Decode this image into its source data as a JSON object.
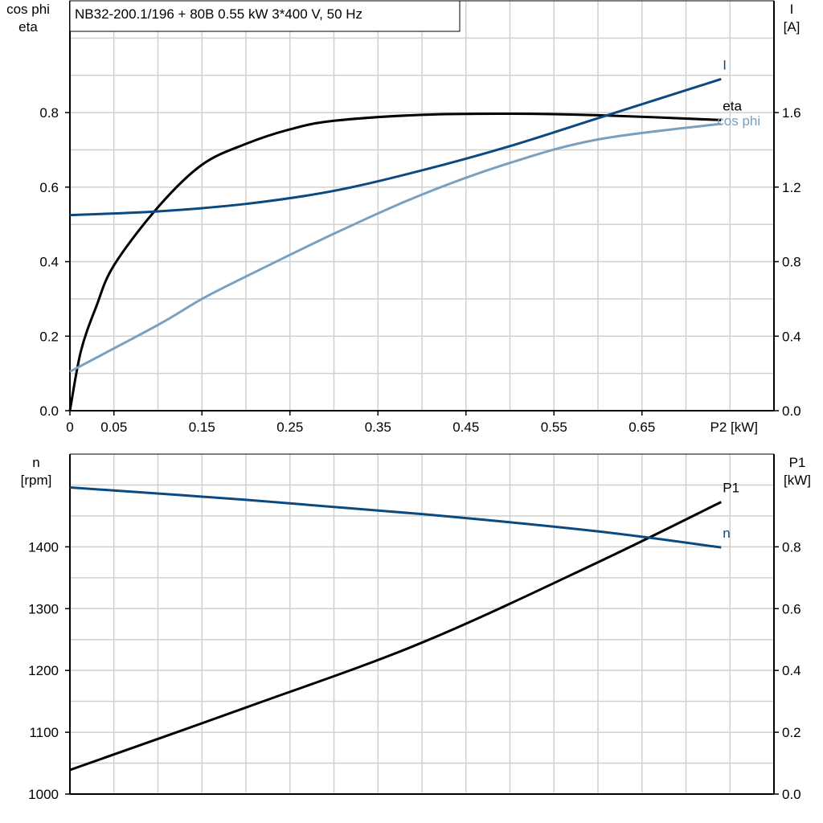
{
  "chart_data": [
    {
      "type": "line",
      "title": "NB32-200.1/196 + 80B   0.55 kW   3*400 V, 50 Hz",
      "xlabel": "P2 [kW]",
      "x_ticks": [
        "0",
        "0.05",
        "0.15",
        "0.25",
        "0.35",
        "0.45",
        "0.55",
        "0.65"
      ],
      "x_tick_values": [
        0,
        0.05,
        0.15,
        0.25,
        0.35,
        0.45,
        0.55,
        0.65
      ],
      "xlim": [
        0,
        0.8
      ],
      "grid": true,
      "y_left": {
        "label_lines": [
          "cos phi",
          "eta"
        ],
        "ylim": [
          0,
          1.1
        ],
        "ticks": [
          "0.0",
          "0.2",
          "0.4",
          "0.6",
          "0.8"
        ],
        "tick_values": [
          0,
          0.2,
          0.4,
          0.6,
          0.8
        ]
      },
      "y_right": {
        "label_lines": [
          "I",
          "[A]"
        ],
        "ylim": [
          0,
          2.2
        ],
        "ticks": [
          "0.0",
          "0.4",
          "0.8",
          "1.2",
          "1.6"
        ],
        "tick_values": [
          0,
          0.4,
          0.8,
          1.2,
          1.6
        ]
      },
      "series": [
        {
          "name": "eta",
          "axis": "left",
          "color": "#000000",
          "x": [
            0,
            0.0125,
            0.03,
            0.05,
            0.1,
            0.15,
            0.2,
            0.25,
            0.3,
            0.4,
            0.5,
            0.6,
            0.74
          ],
          "y": [
            0,
            0.16,
            0.28,
            0.39,
            0.546,
            0.66,
            0.716,
            0.755,
            0.778,
            0.794,
            0.797,
            0.793,
            0.78
          ]
        },
        {
          "name": "I",
          "axis": "right",
          "color": "#0a4a80",
          "x": [
            0,
            0.1,
            0.2,
            0.3,
            0.4,
            0.5,
            0.6,
            0.74
          ],
          "y": [
            1.05,
            1.07,
            1.11,
            1.18,
            1.29,
            1.42,
            1.57,
            1.78
          ]
        },
        {
          "name": "cos phi",
          "axis": "left",
          "color": "#7aa0c0",
          "x": [
            0,
            0.1,
            0.15,
            0.2,
            0.3,
            0.4,
            0.5,
            0.6,
            0.74
          ],
          "y": [
            0.105,
            0.23,
            0.3,
            0.36,
            0.475,
            0.58,
            0.665,
            0.728,
            0.77
          ]
        }
      ]
    },
    {
      "type": "line",
      "xlim": [
        0,
        0.8
      ],
      "grid": true,
      "y_left": {
        "label_lines": [
          "n",
          "[rpm]"
        ],
        "ylim": [
          1000,
          1550
        ],
        "ticks": [
          "1000",
          "1100",
          "1200",
          "1300",
          "1400"
        ],
        "tick_values": [
          1000,
          1100,
          1200,
          1300,
          1400
        ]
      },
      "y_right": {
        "label_lines": [
          "P1",
          "[kW]"
        ],
        "ylim": [
          0,
          1.1
        ],
        "ticks": [
          "0.0",
          "0.2",
          "0.4",
          "0.6",
          "0.8"
        ],
        "tick_values": [
          0,
          0.2,
          0.4,
          0.6,
          0.8
        ]
      },
      "series": [
        {
          "name": "P1",
          "axis": "right",
          "color": "#000000",
          "x": [
            0,
            0.2,
            0.4,
            0.6,
            0.74
          ],
          "y": [
            0.078,
            0.28,
            0.49,
            0.75,
            0.945
          ]
        },
        {
          "name": "n",
          "axis": "left",
          "color": "#0a4a80",
          "x": [
            0,
            0.2,
            0.4,
            0.6,
            0.74
          ],
          "y": [
            1496,
            1476,
            1453,
            1425,
            1399
          ]
        }
      ]
    }
  ]
}
